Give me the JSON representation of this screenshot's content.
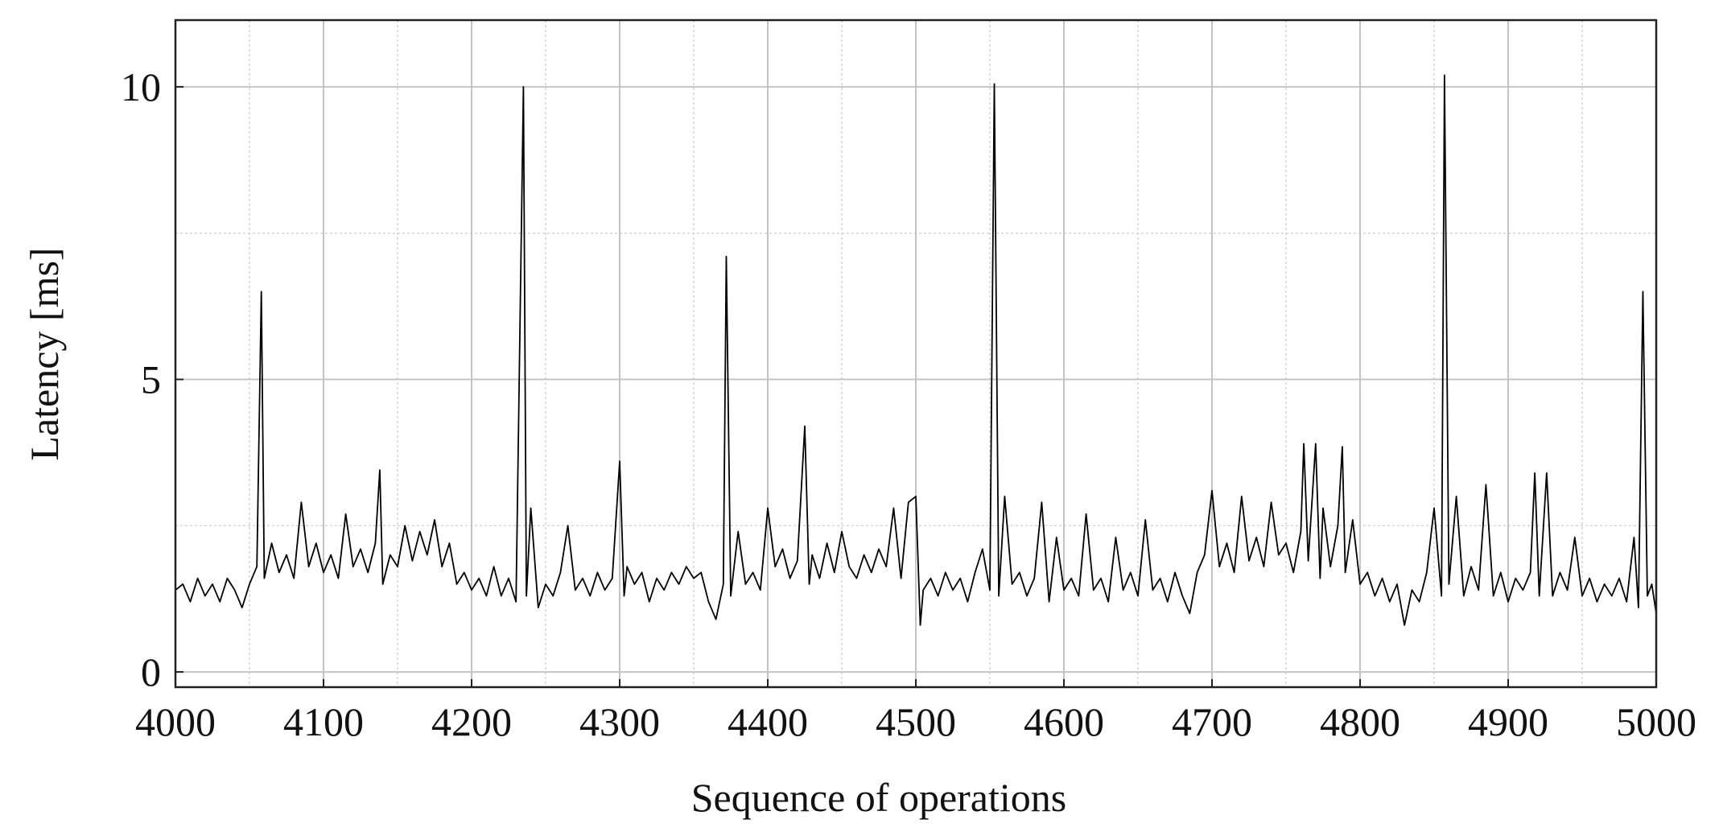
{
  "chart_data": {
    "type": "line",
    "xlabel": "Sequence of operations",
    "ylabel": "Latency [ms]",
    "xlim": [
      4000,
      5000
    ],
    "xticks": [
      4000,
      4100,
      4200,
      4300,
      4400,
      4500,
      4600,
      4700,
      4800,
      4900,
      5000
    ],
    "minor_xticks": [
      4050,
      4150,
      4250,
      4350,
      4450,
      4550,
      4650,
      4750,
      4850,
      4950
    ],
    "ylim": [
      -0.26,
      11.14
    ],
    "yticks": [
      0,
      5,
      10
    ],
    "minor_yticks": [
      2.5,
      7.5
    ],
    "grid": true,
    "x": [
      4000,
      4005,
      4010,
      4015,
      4020,
      4025,
      4030,
      4035,
      4040,
      4045,
      4050,
      4055,
      4058,
      4060,
      4065,
      4070,
      4075,
      4080,
      4085,
      4090,
      4095,
      4100,
      4105,
      4110,
      4115,
      4120,
      4125,
      4130,
      4135,
      4138,
      4140,
      4145,
      4150,
      4155,
      4160,
      4165,
      4170,
      4175,
      4180,
      4185,
      4190,
      4195,
      4200,
      4205,
      4210,
      4215,
      4220,
      4225,
      4230,
      4235,
      4237,
      4240,
      4245,
      4250,
      4255,
      4260,
      4265,
      4270,
      4275,
      4280,
      4285,
      4290,
      4295,
      4300,
      4303,
      4305,
      4310,
      4315,
      4320,
      4325,
      4330,
      4335,
      4340,
      4345,
      4350,
      4355,
      4360,
      4365,
      4370,
      4372,
      4375,
      4380,
      4385,
      4390,
      4395,
      4400,
      4405,
      4410,
      4415,
      4420,
      4425,
      4428,
      4430,
      4435,
      4440,
      4445,
      4450,
      4455,
      4460,
      4465,
      4470,
      4475,
      4480,
      4485,
      4490,
      4495,
      4500,
      4503,
      4505,
      4510,
      4515,
      4520,
      4525,
      4530,
      4535,
      4540,
      4545,
      4550,
      4553,
      4556,
      4560,
      4565,
      4570,
      4575,
      4580,
      4585,
      4590,
      4595,
      4600,
      4605,
      4610,
      4615,
      4620,
      4625,
      4630,
      4635,
      4640,
      4645,
      4650,
      4655,
      4660,
      4665,
      4670,
      4675,
      4680,
      4685,
      4690,
      4695,
      4700,
      4705,
      4710,
      4715,
      4720,
      4725,
      4730,
      4735,
      4740,
      4745,
      4750,
      4755,
      4760,
      4762,
      4765,
      4770,
      4773,
      4775,
      4780,
      4785,
      4788,
      4790,
      4795,
      4800,
      4805,
      4810,
      4815,
      4820,
      4825,
      4830,
      4835,
      4840,
      4845,
      4850,
      4855,
      4857,
      4860,
      4865,
      4870,
      4875,
      4880,
      4885,
      4890,
      4895,
      4900,
      4905,
      4910,
      4915,
      4918,
      4921,
      4926,
      4930,
      4935,
      4940,
      4945,
      4950,
      4955,
      4960,
      4965,
      4970,
      4975,
      4980,
      4985,
      4988,
      4991,
      4994,
      4997,
      5000
    ],
    "series": [
      {
        "color": "#000000",
        "values": [
          1.4,
          1.5,
          1.2,
          1.6,
          1.3,
          1.5,
          1.2,
          1.6,
          1.4,
          1.1,
          1.5,
          1.8,
          6.5,
          1.6,
          2.2,
          1.7,
          2.0,
          1.6,
          2.9,
          1.8,
          2.2,
          1.7,
          2.0,
          1.6,
          2.7,
          1.8,
          2.1,
          1.7,
          2.2,
          3.45,
          1.5,
          2.0,
          1.8,
          2.5,
          1.9,
          2.4,
          2.0,
          2.6,
          1.8,
          2.2,
          1.5,
          1.7,
          1.4,
          1.6,
          1.3,
          1.8,
          1.3,
          1.6,
          1.2,
          10.0,
          1.3,
          2.8,
          1.1,
          1.5,
          1.3,
          1.7,
          2.5,
          1.4,
          1.6,
          1.3,
          1.7,
          1.4,
          1.6,
          3.6,
          1.3,
          1.8,
          1.5,
          1.7,
          1.2,
          1.6,
          1.4,
          1.7,
          1.5,
          1.8,
          1.6,
          1.7,
          1.2,
          0.9,
          1.5,
          7.1,
          1.3,
          2.4,
          1.5,
          1.7,
          1.4,
          2.8,
          1.8,
          2.1,
          1.6,
          1.9,
          4.2,
          1.5,
          2.0,
          1.6,
          2.2,
          1.7,
          2.4,
          1.8,
          1.6,
          2.0,
          1.7,
          2.1,
          1.8,
          2.8,
          1.6,
          2.9,
          3.0,
          0.8,
          1.4,
          1.6,
          1.3,
          1.7,
          1.4,
          1.6,
          1.2,
          1.7,
          2.1,
          1.4,
          10.05,
          1.3,
          3.0,
          1.5,
          1.7,
          1.3,
          1.6,
          2.9,
          1.2,
          2.3,
          1.4,
          1.6,
          1.3,
          2.7,
          1.4,
          1.6,
          1.2,
          2.3,
          1.4,
          1.7,
          1.3,
          2.6,
          1.4,
          1.6,
          1.2,
          1.7,
          1.3,
          1.0,
          1.7,
          2.0,
          3.1,
          1.8,
          2.2,
          1.7,
          3.0,
          1.9,
          2.3,
          1.8,
          2.9,
          2.0,
          2.2,
          1.7,
          2.4,
          3.9,
          1.9,
          3.9,
          1.6,
          2.8,
          1.8,
          2.5,
          3.85,
          1.7,
          2.6,
          1.5,
          1.7,
          1.3,
          1.6,
          1.2,
          1.5,
          0.8,
          1.4,
          1.2,
          1.7,
          2.8,
          1.3,
          10.2,
          1.5,
          3.0,
          1.3,
          1.8,
          1.4,
          3.2,
          1.3,
          1.7,
          1.2,
          1.6,
          1.4,
          1.7,
          3.4,
          1.3,
          3.4,
          1.3,
          1.7,
          1.4,
          2.3,
          1.3,
          1.6,
          1.2,
          1.5,
          1.3,
          1.6,
          1.2,
          2.3,
          1.1,
          6.5,
          1.3,
          1.5,
          1.0
        ]
      }
    ]
  }
}
